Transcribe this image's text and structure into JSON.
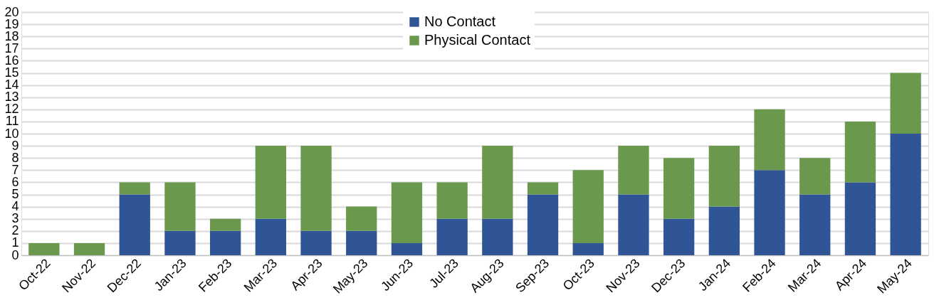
{
  "chart_data": {
    "type": "bar",
    "stacked": true,
    "categories": [
      "Oct-22",
      "Nov-22",
      "Dec-22",
      "Jan-23",
      "Feb-23",
      "Mar-23",
      "Apr-23",
      "May-23",
      "Jun-23",
      "Jul-23",
      "Aug-23",
      "Sep-23",
      "Oct-23",
      "Nov-23",
      "Dec-23",
      "Jan-24",
      "Feb-24",
      "Mar-24",
      "Apr-24",
      "May-24"
    ],
    "series": [
      {
        "name": "No Contact",
        "color": "#2f5597",
        "values": [
          0,
          0,
          5,
          2,
          2,
          3,
          2,
          2,
          1,
          3,
          3,
          5,
          1,
          5,
          3,
          4,
          7,
          5,
          6,
          10
        ]
      },
      {
        "name": "Physical Contact",
        "color": "#6a994e",
        "values": [
          1,
          1,
          1,
          4,
          1,
          6,
          7,
          2,
          5,
          3,
          6,
          1,
          6,
          4,
          5,
          5,
          5,
          3,
          5,
          5
        ]
      }
    ],
    "ylim": [
      0,
      20
    ],
    "yticks": [
      0,
      1,
      2,
      3,
      4,
      5,
      6,
      7,
      8,
      9,
      10,
      11,
      12,
      13,
      14,
      15,
      16,
      17,
      18,
      19,
      20
    ],
    "grid": "y",
    "legend": "top"
  }
}
